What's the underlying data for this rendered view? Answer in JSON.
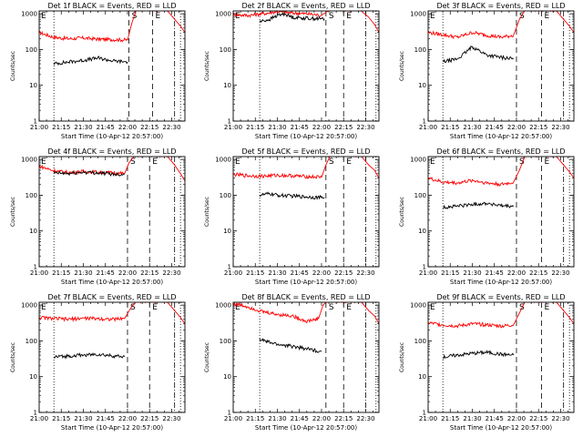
{
  "chart_data": [
    {
      "type": "line",
      "title": "Det 1f BLACK = Events, RED = LLD",
      "xlabel": "Start Time (10-Apr-12 20:57:00)",
      "ylabel": "Counts/sec",
      "ylog": true,
      "ylim": [
        1,
        1200
      ],
      "yticks": [
        1,
        10,
        100,
        1000
      ],
      "ytick_labels": [
        "1",
        "10",
        "100",
        "1000"
      ],
      "xlim_min": [
        0,
        99
      ],
      "xticks_min": [
        0,
        15,
        30,
        45,
        60,
        75,
        90
      ],
      "xtick_labels": [
        "21:00",
        "21:15",
        "21:30",
        "21:45",
        "22:00",
        "22:15",
        "22:30"
      ],
      "markers": [
        {
          "t": 10,
          "style": "dotted"
        },
        {
          "t": 61,
          "style": "dashed",
          "label": "S"
        },
        {
          "t": 77,
          "style": "dashed",
          "label": "E"
        },
        {
          "t": 92,
          "style": "dashdot"
        },
        {
          "t": 96,
          "style": "dotted"
        }
      ],
      "corner_label": "E",
      "series": [
        {
          "color": "#ff0000",
          "t": [
            0,
            10,
            20,
            30,
            40,
            50,
            60,
            63,
            66,
            86,
            88,
            92,
            96,
            99
          ],
          "values": [
            300,
            220,
            200,
            210,
            195,
            190,
            185,
            550,
            1300,
            1300,
            1100,
            700,
            450,
            300
          ]
        },
        {
          "color": "#000000",
          "t": [
            10,
            20,
            30,
            40,
            50,
            60
          ],
          "values": [
            40,
            45,
            50,
            58,
            48,
            45
          ]
        }
      ]
    },
    {
      "type": "line",
      "title": "Det 2f BLACK = Events, RED = LLD",
      "xlabel": "Start Time (10-Apr-12 20:57:00)",
      "ylabel": "Counts/sec",
      "ylog": true,
      "ylim": [
        1,
        1200
      ],
      "yticks": [
        1,
        10,
        100,
        1000
      ],
      "ytick_labels": [
        "1",
        "10",
        "100",
        "1000"
      ],
      "xlim_min": [
        0,
        99
      ],
      "xticks_min": [
        0,
        15,
        30,
        45,
        60,
        75,
        90
      ],
      "xtick_labels": [
        "21:00",
        "21:15",
        "21:30",
        "21:45",
        "22:00",
        "22:15",
        "22:30"
      ],
      "markers": [
        {
          "t": 18,
          "style": "dotted"
        },
        {
          "t": 63,
          "style": "dashed",
          "label": "S"
        },
        {
          "t": 75,
          "style": "dashed",
          "label": "E"
        },
        {
          "t": 90,
          "style": "dashdot"
        },
        {
          "t": 97,
          "style": "dotted"
        }
      ],
      "corner_label": "E",
      "series": [
        {
          "color": "#ff0000",
          "t": [
            0,
            10,
            20,
            30,
            40,
            50,
            60,
            63,
            66,
            86,
            88,
            92,
            96,
            99
          ],
          "values": [
            950,
            900,
            1000,
            1150,
            1050,
            1000,
            900,
            1100,
            1300,
            1300,
            1100,
            800,
            500,
            300
          ]
        },
        {
          "color": "#000000",
          "t": [
            18,
            25,
            30,
            35,
            40,
            50,
            62
          ],
          "values": [
            600,
            700,
            900,
            1000,
            800,
            750,
            720
          ]
        }
      ]
    },
    {
      "type": "line",
      "title": "Det 3f BLACK = Events, RED = LLD",
      "xlabel": "Start Time (10-Apr-12 20:57:00)",
      "ylabel": "Counts/sec",
      "ylog": true,
      "ylim": [
        1,
        1200
      ],
      "yticks": [
        1,
        10,
        100,
        1000
      ],
      "ytick_labels": [
        "1",
        "10",
        "100",
        "1000"
      ],
      "xlim_min": [
        0,
        99
      ],
      "xticks_min": [
        0,
        15,
        30,
        45,
        60,
        75,
        90
      ],
      "xtick_labels": [
        "21:00",
        "21:15",
        "21:30",
        "21:45",
        "22:00",
        "22:15",
        "22:30"
      ],
      "markers": [
        {
          "t": 10,
          "style": "dotted"
        },
        {
          "t": 60,
          "style": "dashed",
          "label": "S"
        },
        {
          "t": 77,
          "style": "dashed",
          "label": "E"
        },
        {
          "t": 92,
          "style": "dashdot"
        },
        {
          "t": 96,
          "style": "dotted"
        }
      ],
      "corner_label": "E",
      "series": [
        {
          "color": "#ff0000",
          "t": [
            0,
            10,
            20,
            30,
            40,
            50,
            58,
            62,
            66,
            86,
            88,
            92,
            96,
            99
          ],
          "values": [
            300,
            260,
            220,
            300,
            250,
            220,
            250,
            700,
            1300,
            1300,
            1100,
            700,
            450,
            300
          ]
        },
        {
          "color": "#000000",
          "t": [
            10,
            20,
            25,
            30,
            40,
            50,
            58
          ],
          "values": [
            45,
            55,
            80,
            120,
            70,
            60,
            55
          ]
        }
      ]
    },
    {
      "type": "line",
      "title": "Det 4f BLACK = Events, RED = LLD",
      "xlabel": "Start Time (10-Apr-12 20:57:00)",
      "ylabel": "Counts/sec",
      "ylog": true,
      "ylim": [
        1,
        1200
      ],
      "yticks": [
        1,
        10,
        100,
        1000
      ],
      "ytick_labels": [
        "1",
        "10",
        "100",
        "1000"
      ],
      "xlim_min": [
        0,
        99
      ],
      "xticks_min": [
        0,
        15,
        30,
        45,
        60,
        75,
        90
      ],
      "xtick_labels": [
        "21:00",
        "21:15",
        "21:30",
        "21:45",
        "22:00",
        "22:15",
        "22:30"
      ],
      "markers": [
        {
          "t": 10,
          "style": "dotted"
        },
        {
          "t": 60,
          "style": "dashed",
          "label": "S"
        },
        {
          "t": 75,
          "style": "dashed",
          "label": "E"
        },
        {
          "t": 92,
          "style": "dashdot"
        },
        {
          "t": 96,
          "style": "dotted"
        }
      ],
      "corner_label": "E",
      "series": [
        {
          "color": "#ff0000",
          "t": [
            0,
            10,
            20,
            30,
            40,
            50,
            58,
            61,
            65,
            86,
            88,
            92,
            96,
            99
          ],
          "values": [
            650,
            480,
            430,
            460,
            440,
            420,
            400,
            800,
            1300,
            1300,
            1100,
            700,
            400,
            250
          ]
        },
        {
          "color": "#000000",
          "t": [
            10,
            20,
            30,
            40,
            50,
            58
          ],
          "values": [
            420,
            400,
            440,
            420,
            390,
            380
          ]
        }
      ]
    },
    {
      "type": "line",
      "title": "Det 5f BLACK = Events, RED = LLD",
      "xlabel": "Start Time (10-Apr-12 20:57:00)",
      "ylabel": "Counts/sec",
      "ylog": true,
      "ylim": [
        1,
        1200
      ],
      "yticks": [
        1,
        10,
        100,
        1000
      ],
      "ytick_labels": [
        "1",
        "10",
        "100",
        "1000"
      ],
      "xlim_min": [
        0,
        99
      ],
      "xticks_min": [
        0,
        15,
        30,
        45,
        60,
        75,
        90
      ],
      "xtick_labels": [
        "21:00",
        "21:15",
        "21:30",
        "21:45",
        "22:00",
        "22:15",
        "22:30"
      ],
      "markers": [
        {
          "t": 18,
          "style": "dotted"
        },
        {
          "t": 63,
          "style": "dashed",
          "label": "S"
        },
        {
          "t": 75,
          "style": "dashed",
          "label": "E"
        },
        {
          "t": 90,
          "style": "dashdot"
        },
        {
          "t": 97,
          "style": "dotted"
        }
      ],
      "corner_label": "E",
      "series": [
        {
          "color": "#ff0000",
          "t": [
            0,
            10,
            20,
            30,
            40,
            50,
            60,
            63,
            66,
            86,
            88,
            92,
            96,
            99
          ],
          "values": [
            380,
            350,
            340,
            360,
            350,
            330,
            320,
            700,
            1300,
            1300,
            1100,
            700,
            500,
            300
          ]
        },
        {
          "color": "#000000",
          "t": [
            18,
            25,
            30,
            40,
            50,
            62
          ],
          "values": [
            100,
            110,
            100,
            95,
            90,
            85
          ]
        }
      ]
    },
    {
      "type": "line",
      "title": "Det 6f BLACK = Events, RED = LLD",
      "xlabel": "Start Time (10-Apr-12 20:57:00)",
      "ylabel": "Counts/sec",
      "ylog": true,
      "ylim": [
        1,
        1200
      ],
      "yticks": [
        1,
        10,
        100,
        1000
      ],
      "ytick_labels": [
        "1",
        "10",
        "100",
        "1000"
      ],
      "xlim_min": [
        0,
        99
      ],
      "xticks_min": [
        0,
        15,
        30,
        45,
        60,
        75,
        90
      ],
      "xtick_labels": [
        "21:00",
        "21:15",
        "21:30",
        "21:45",
        "22:00",
        "22:15",
        "22:30"
      ],
      "markers": [
        {
          "t": 10,
          "style": "dotted"
        },
        {
          "t": 60,
          "style": "dashed",
          "label": "S"
        },
        {
          "t": 77,
          "style": "dashed",
          "label": "E"
        },
        {
          "t": 92,
          "style": "dashdot"
        },
        {
          "t": 96,
          "style": "dotted"
        }
      ],
      "corner_label": "E",
      "series": [
        {
          "color": "#ff0000",
          "t": [
            0,
            10,
            20,
            30,
            40,
            50,
            58,
            62,
            66,
            86,
            88,
            92,
            96,
            99
          ],
          "values": [
            300,
            230,
            220,
            260,
            220,
            200,
            230,
            500,
            1300,
            1300,
            1100,
            700,
            450,
            300
          ]
        },
        {
          "color": "#000000",
          "t": [
            10,
            20,
            30,
            40,
            50,
            58
          ],
          "values": [
            45,
            50,
            55,
            60,
            50,
            48
          ]
        }
      ]
    },
    {
      "type": "line",
      "title": "Det 7f BLACK = Events, RED = LLD",
      "xlabel": "Start Time (10-Apr-12 20:57:00)",
      "ylabel": "Counts/sec",
      "ylog": true,
      "ylim": [
        1,
        1200
      ],
      "yticks": [
        1,
        10,
        100,
        1000
      ],
      "ytick_labels": [
        "1",
        "10",
        "100",
        "1000"
      ],
      "xlim_min": [
        0,
        99
      ],
      "xticks_min": [
        0,
        15,
        30,
        45,
        60,
        75,
        90
      ],
      "xtick_labels": [
        "21:00",
        "21:15",
        "21:30",
        "21:45",
        "22:00",
        "22:15",
        "22:30"
      ],
      "markers": [
        {
          "t": 10,
          "style": "dotted"
        },
        {
          "t": 60,
          "style": "dashed",
          "label": "S"
        },
        {
          "t": 75,
          "style": "dashed",
          "label": "E"
        },
        {
          "t": 92,
          "style": "dashdot"
        },
        {
          "t": 96,
          "style": "dotted"
        }
      ],
      "corner_label": "E",
      "series": [
        {
          "color": "#ff0000",
          "t": [
            0,
            10,
            20,
            30,
            40,
            50,
            58,
            62,
            66,
            86,
            88,
            92,
            96,
            99
          ],
          "values": [
            450,
            420,
            400,
            430,
            420,
            400,
            420,
            800,
            1300,
            1300,
            1100,
            700,
            450,
            300
          ]
        },
        {
          "color": "#000000",
          "t": [
            10,
            20,
            30,
            40,
            50,
            58
          ],
          "values": [
            35,
            38,
            40,
            42,
            38,
            36
          ]
        }
      ]
    },
    {
      "type": "line",
      "title": "Det 8f BLACK = Events, RED = LLD",
      "xlabel": "Start Time (10-Apr-12 20:57:00)",
      "ylabel": "Counts/sec",
      "ylog": true,
      "ylim": [
        1,
        1200
      ],
      "yticks": [
        1,
        10,
        100,
        1000
      ],
      "ytick_labels": [
        "1",
        "10",
        "100",
        "1000"
      ],
      "xlim_min": [
        0,
        99
      ],
      "xticks_min": [
        0,
        15,
        30,
        45,
        60,
        75,
        90
      ],
      "xtick_labels": [
        "21:00",
        "21:15",
        "21:30",
        "21:45",
        "22:00",
        "22:15",
        "22:30"
      ],
      "markers": [
        {
          "t": 18,
          "style": "dotted"
        },
        {
          "t": 63,
          "style": "dashed",
          "label": "S"
        },
        {
          "t": 75,
          "style": "dashed",
          "label": "E"
        },
        {
          "t": 90,
          "style": "dashdot"
        },
        {
          "t": 97,
          "style": "dotted"
        }
      ],
      "corner_label": "E",
      "series": [
        {
          "color": "#ff0000",
          "t": [
            0,
            10,
            20,
            30,
            40,
            50,
            58,
            61,
            64,
            86,
            88,
            92,
            96,
            99
          ],
          "values": [
            1100,
            900,
            650,
            550,
            500,
            350,
            420,
            1000,
            1300,
            1300,
            1100,
            700,
            500,
            300
          ]
        },
        {
          "color": "#000000",
          "t": [
            18,
            25,
            30,
            40,
            50,
            60
          ],
          "values": [
            110,
            90,
            80,
            70,
            60,
            50
          ]
        }
      ]
    },
    {
      "type": "line",
      "title": "Det 9f BLACK = Events, RED = LLD",
      "xlabel": "Start Time (10-Apr-12 20:57:00)",
      "ylabel": "Counts/sec",
      "ylog": true,
      "ylim": [
        1,
        1200
      ],
      "yticks": [
        1,
        10,
        100,
        1000
      ],
      "ytick_labels": [
        "1",
        "10",
        "100",
        "1000"
      ],
      "xlim_min": [
        0,
        99
      ],
      "xticks_min": [
        0,
        15,
        30,
        45,
        60,
        75,
        90
      ],
      "xtick_labels": [
        "21:00",
        "21:15",
        "21:30",
        "21:45",
        "22:00",
        "22:15",
        "22:30"
      ],
      "markers": [
        {
          "t": 10,
          "style": "dotted"
        },
        {
          "t": 60,
          "style": "dashed",
          "label": "S"
        },
        {
          "t": 77,
          "style": "dashed",
          "label": "E"
        },
        {
          "t": 92,
          "style": "dashdot"
        },
        {
          "t": 96,
          "style": "dotted"
        }
      ],
      "corner_label": "E",
      "series": [
        {
          "color": "#ff0000",
          "t": [
            0,
            10,
            20,
            30,
            40,
            50,
            58,
            62,
            66,
            86,
            88,
            92,
            96,
            99
          ],
          "values": [
            320,
            280,
            260,
            300,
            280,
            260,
            280,
            600,
            1300,
            1300,
            1100,
            700,
            450,
            300
          ]
        },
        {
          "color": "#000000",
          "t": [
            10,
            20,
            30,
            40,
            50,
            58
          ],
          "values": [
            35,
            40,
            45,
            48,
            42,
            40
          ]
        }
      ]
    }
  ]
}
